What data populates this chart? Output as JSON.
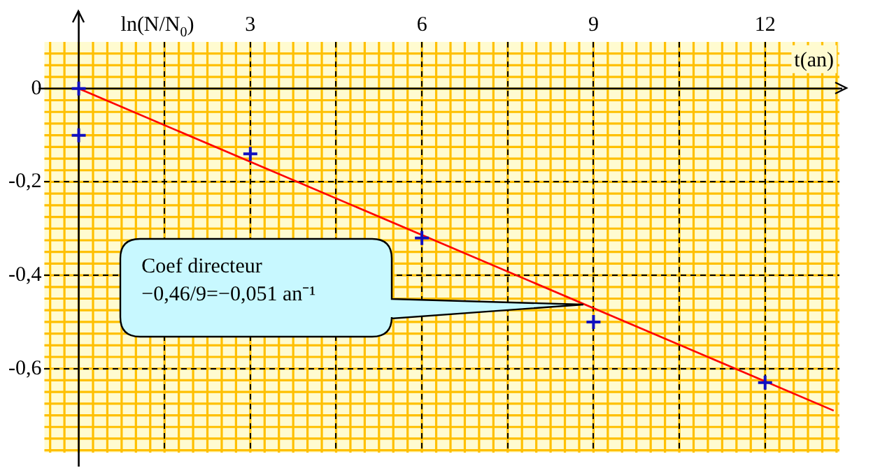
{
  "chart_data": {
    "type": "scatter",
    "xlabel": "t(an)",
    "ylabel": "ln(N/N$_{0}$)",
    "xlim": [
      -0.6,
      13.3
    ],
    "ylim": [
      -0.78,
      0.1
    ],
    "xticks": [
      {
        "value": 1.5,
        "label": null
      },
      3,
      {
        "value": 4.5,
        "label": null
      },
      6,
      {
        "value": 7.5,
        "label": null
      },
      9,
      {
        "value": 10.5,
        "label": null
      },
      12
    ],
    "yticks": [
      {
        "value": 0,
        "label": "0"
      },
      {
        "value": -0.2,
        "label": "-0,2"
      },
      {
        "value": -0.4,
        "label": "-0,4"
      },
      {
        "value": -0.6,
        "label": "-0,6"
      }
    ],
    "grid": true,
    "legend": false,
    "marker": "cross",
    "series": [
      {
        "type": "scatter",
        "color": "#1010c0",
        "x": [
          0,
          0,
          3,
          6,
          9,
          12
        ],
        "values": [
          0,
          -0.1,
          -0.14,
          -0.32,
          -0.5,
          -0.63
        ]
      },
      {
        "type": "line",
        "color": "#ff0000",
        "marker": "none",
        "x": [
          0,
          13.2
        ],
        "values": [
          0,
          -0.69
        ]
      }
    ],
    "annotations": [
      "Coef directeur\n−0,46/9=−0,051 an⁻¹"
    ]
  }
}
